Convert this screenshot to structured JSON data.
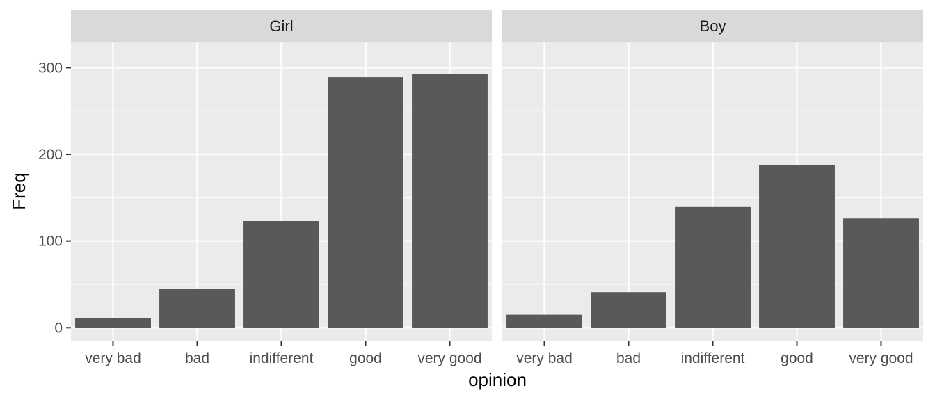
{
  "chart_data": {
    "type": "bar",
    "xlabel": "opinion",
    "ylabel": "Freq",
    "ylim": [
      -15,
      330
    ],
    "yticks": [
      0,
      100,
      200,
      300
    ],
    "categories": [
      "very bad",
      "bad",
      "indifferent",
      "good",
      "very good"
    ],
    "grid": true,
    "colors": {
      "bar": "#595959",
      "panel_background": "#ebebeb",
      "strip_background": "#d9d9d9",
      "gridline": "#ffffff",
      "text": "#4d4d4d"
    },
    "facets": [
      {
        "name": "Girl",
        "values": [
          11,
          45,
          123,
          289,
          293
        ]
      },
      {
        "name": "Boy",
        "values": [
          15,
          41,
          140,
          188,
          126
        ]
      }
    ]
  }
}
